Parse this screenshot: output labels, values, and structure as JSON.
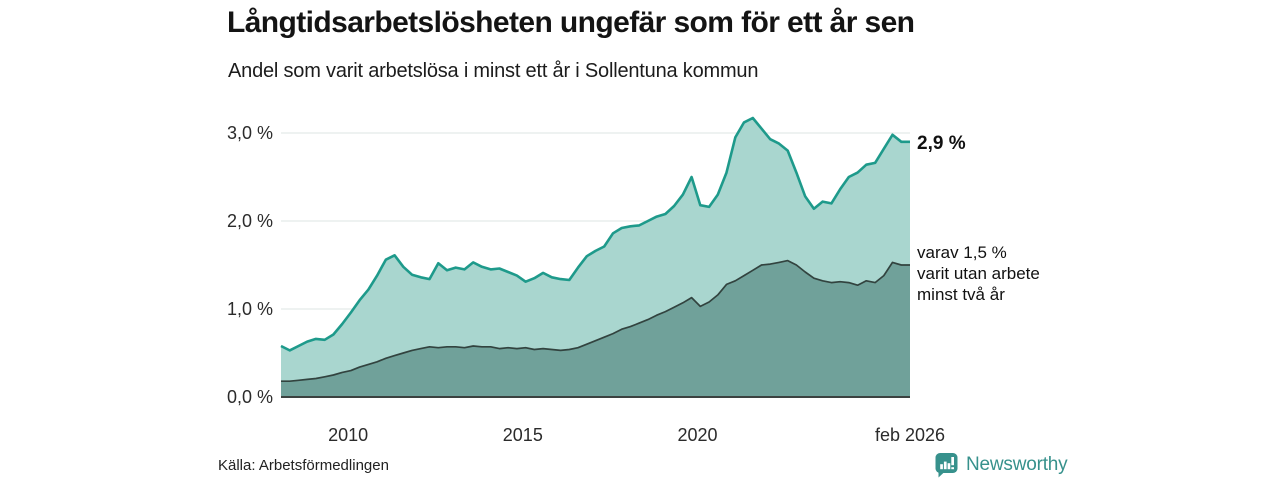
{
  "title": "Långtidsarbetslösheten ungefär som för ett år sen",
  "subtitle": "Andel som varit arbetslösa i minst ett år i Sollentuna kommun",
  "source": "Källa: Arbetsförmedlingen",
  "logo": {
    "name": "Newsworthy",
    "color": "#37918C"
  },
  "annotations": {
    "latest_total": "2,9 %",
    "secondary_line1": "varav 1,5 %",
    "secondary_line2": "varit utan arbete",
    "secondary_line3": "minst två år"
  },
  "chart_data": {
    "type": "area",
    "title": "Långtidsarbetslösheten ungefär som för ett år sen",
    "subtitle": "Andel som varit arbetslösa i minst ett år i Sollentuna kommun",
    "x_unit": "decimal_year",
    "xlim": [
      2008.08,
      2026.08
    ],
    "ylim": [
      0,
      3.3
    ],
    "grid": "horizontal",
    "grid_color": "#dde4e3",
    "axis_color": "#3c4240",
    "x": [
      2008.08,
      2008.33,
      2008.58,
      2008.83,
      2009.08,
      2009.33,
      2009.58,
      2009.83,
      2010.08,
      2010.33,
      2010.58,
      2010.83,
      2011.08,
      2011.33,
      2011.58,
      2011.83,
      2012.08,
      2012.33,
      2012.58,
      2012.83,
      2013.08,
      2013.33,
      2013.58,
      2013.83,
      2014.08,
      2014.33,
      2014.58,
      2014.83,
      2015.08,
      2015.33,
      2015.58,
      2015.83,
      2016.08,
      2016.33,
      2016.58,
      2016.83,
      2017.08,
      2017.33,
      2017.58,
      2017.83,
      2018.08,
      2018.33,
      2018.58,
      2018.83,
      2019.08,
      2019.33,
      2019.58,
      2019.83,
      2020.08,
      2020.33,
      2020.58,
      2020.83,
      2021.08,
      2021.33,
      2021.58,
      2021.83,
      2022.08,
      2022.33,
      2022.58,
      2022.83,
      2023.08,
      2023.33,
      2023.58,
      2023.83,
      2024.08,
      2024.33,
      2024.58,
      2024.83,
      2025.08,
      2025.33,
      2025.58,
      2025.83,
      2026.08
    ],
    "series": [
      {
        "name": "Andel arbetslösa minst ett år",
        "line_color": "#1E9A8B",
        "fill_color": "#A9D6CF",
        "line_width": 2.6,
        "values": [
          0.58,
          0.53,
          0.58,
          0.63,
          0.66,
          0.65,
          0.71,
          0.83,
          0.96,
          1.1,
          1.22,
          1.38,
          1.56,
          1.61,
          1.48,
          1.39,
          1.36,
          1.34,
          1.52,
          1.44,
          1.47,
          1.45,
          1.53,
          1.48,
          1.45,
          1.46,
          1.42,
          1.38,
          1.31,
          1.35,
          1.41,
          1.36,
          1.34,
          1.33,
          1.47,
          1.6,
          1.66,
          1.71,
          1.86,
          1.92,
          1.94,
          1.95,
          2.0,
          2.05,
          2.08,
          2.17,
          2.3,
          2.5,
          2.18,
          2.16,
          2.3,
          2.55,
          2.95,
          3.12,
          3.17,
          3.05,
          2.93,
          2.88,
          2.8,
          2.55,
          2.28,
          2.14,
          2.22,
          2.2,
          2.36,
          2.5,
          2.55,
          2.64,
          2.66,
          2.82,
          2.98,
          2.9,
          2.9
        ]
      },
      {
        "name": "varav utan arbete minst två år",
        "line_color": "#32433F",
        "fill_color": "#70A19A",
        "line_width": 1.7,
        "values": [
          0.18,
          0.18,
          0.19,
          0.2,
          0.21,
          0.23,
          0.25,
          0.28,
          0.3,
          0.34,
          0.37,
          0.4,
          0.44,
          0.47,
          0.5,
          0.53,
          0.55,
          0.57,
          0.56,
          0.57,
          0.57,
          0.56,
          0.58,
          0.57,
          0.57,
          0.55,
          0.56,
          0.55,
          0.56,
          0.54,
          0.55,
          0.54,
          0.53,
          0.54,
          0.56,
          0.6,
          0.64,
          0.68,
          0.72,
          0.77,
          0.8,
          0.84,
          0.88,
          0.93,
          0.97,
          1.02,
          1.07,
          1.13,
          1.03,
          1.08,
          1.16,
          1.28,
          1.32,
          1.38,
          1.44,
          1.5,
          1.51,
          1.53,
          1.55,
          1.5,
          1.42,
          1.35,
          1.32,
          1.3,
          1.31,
          1.3,
          1.27,
          1.32,
          1.3,
          1.38,
          1.53,
          1.5,
          1.5
        ]
      }
    ],
    "yticks": [
      {
        "value": 0,
        "label": "0,0 %"
      },
      {
        "value": 1,
        "label": "1,0 %"
      },
      {
        "value": 2,
        "label": "2,0 %"
      },
      {
        "value": 3,
        "label": "3,0 %"
      }
    ],
    "xticks": [
      {
        "value": 2010.0,
        "label": "2010"
      },
      {
        "value": 2015.0,
        "label": "2015"
      },
      {
        "value": 2020.0,
        "label": "2020"
      },
      {
        "value": 2026.08,
        "label": "feb 2026"
      }
    ],
    "annotation_values": {
      "latest_total_pct": 2.9,
      "latest_two_year_pct": 1.5
    }
  }
}
